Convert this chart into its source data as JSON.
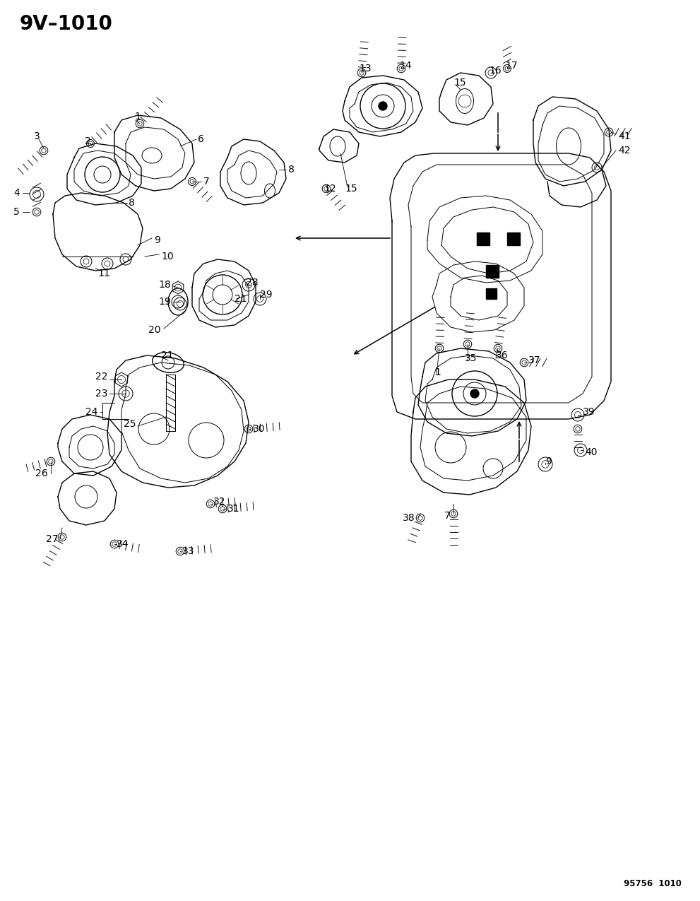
{
  "title": "9V–1010",
  "subtitle": "95756  1010",
  "bg_color": "#ffffff",
  "line_color": "#000000",
  "title_fontsize": 20,
  "label_fontsize": 10,
  "fig_width": 9.91,
  "fig_height": 12.75,
  "dpi": 100,
  "top_left_labels": [
    [
      "1",
      1.95,
      11.05
    ],
    [
      "2",
      1.22,
      10.72
    ],
    [
      "3",
      0.55,
      10.78
    ],
    [
      "4",
      0.38,
      10.02
    ],
    [
      "5",
      0.38,
      9.75
    ],
    [
      "6",
      2.75,
      10.78
    ],
    [
      "7",
      2.82,
      10.15
    ],
    [
      "8",
      1.85,
      9.85
    ],
    [
      "9",
      2.15,
      9.35
    ],
    [
      "10",
      2.25,
      9.12
    ],
    [
      "11",
      1.42,
      8.88
    ]
  ],
  "top_center_labels": [
    [
      "13",
      5.12,
      11.72
    ],
    [
      "14",
      5.68,
      11.78
    ],
    [
      "15",
      6.45,
      11.55
    ],
    [
      "16",
      6.95,
      11.72
    ],
    [
      "17",
      7.18,
      11.78
    ],
    [
      "12",
      4.65,
      10.05
    ],
    [
      "15",
      4.92,
      10.05
    ]
  ],
  "top_right_labels": [
    [
      "41",
      8.75,
      10.78
    ],
    [
      "42",
      8.75,
      10.58
    ]
  ],
  "mid_center_labels": [
    [
      "21",
      3.38,
      8.45
    ],
    [
      "28",
      3.55,
      8.58
    ],
    [
      "29",
      3.72,
      8.45
    ],
    [
      "18",
      2.52,
      8.58
    ],
    [
      "19",
      2.55,
      8.35
    ],
    [
      "20",
      2.32,
      8.05
    ]
  ],
  "lower_left_labels": [
    [
      "21",
      2.45,
      7.65
    ],
    [
      "22",
      1.55,
      7.38
    ],
    [
      "23",
      1.65,
      7.18
    ],
    [
      "24",
      1.52,
      6.82
    ],
    [
      "25",
      1.98,
      6.75
    ],
    [
      "26",
      0.82,
      5.98
    ],
    [
      "27",
      1.02,
      5.12
    ],
    [
      "30",
      3.55,
      6.65
    ],
    [
      "31",
      3.22,
      5.55
    ],
    [
      "32",
      3.02,
      5.62
    ],
    [
      "33",
      2.58,
      4.92
    ],
    [
      "34",
      1.68,
      5.05
    ]
  ],
  "lower_right_labels": [
    [
      "1",
      6.22,
      7.45
    ],
    [
      "35",
      6.65,
      7.62
    ],
    [
      "36",
      7.02,
      7.68
    ],
    [
      "37",
      7.45,
      7.62
    ],
    [
      "7",
      6.42,
      5.48
    ],
    [
      "9",
      7.72,
      6.18
    ],
    [
      "38",
      5.98,
      5.42
    ],
    [
      "39",
      8.22,
      6.88
    ],
    [
      "40",
      8.25,
      6.35
    ]
  ]
}
